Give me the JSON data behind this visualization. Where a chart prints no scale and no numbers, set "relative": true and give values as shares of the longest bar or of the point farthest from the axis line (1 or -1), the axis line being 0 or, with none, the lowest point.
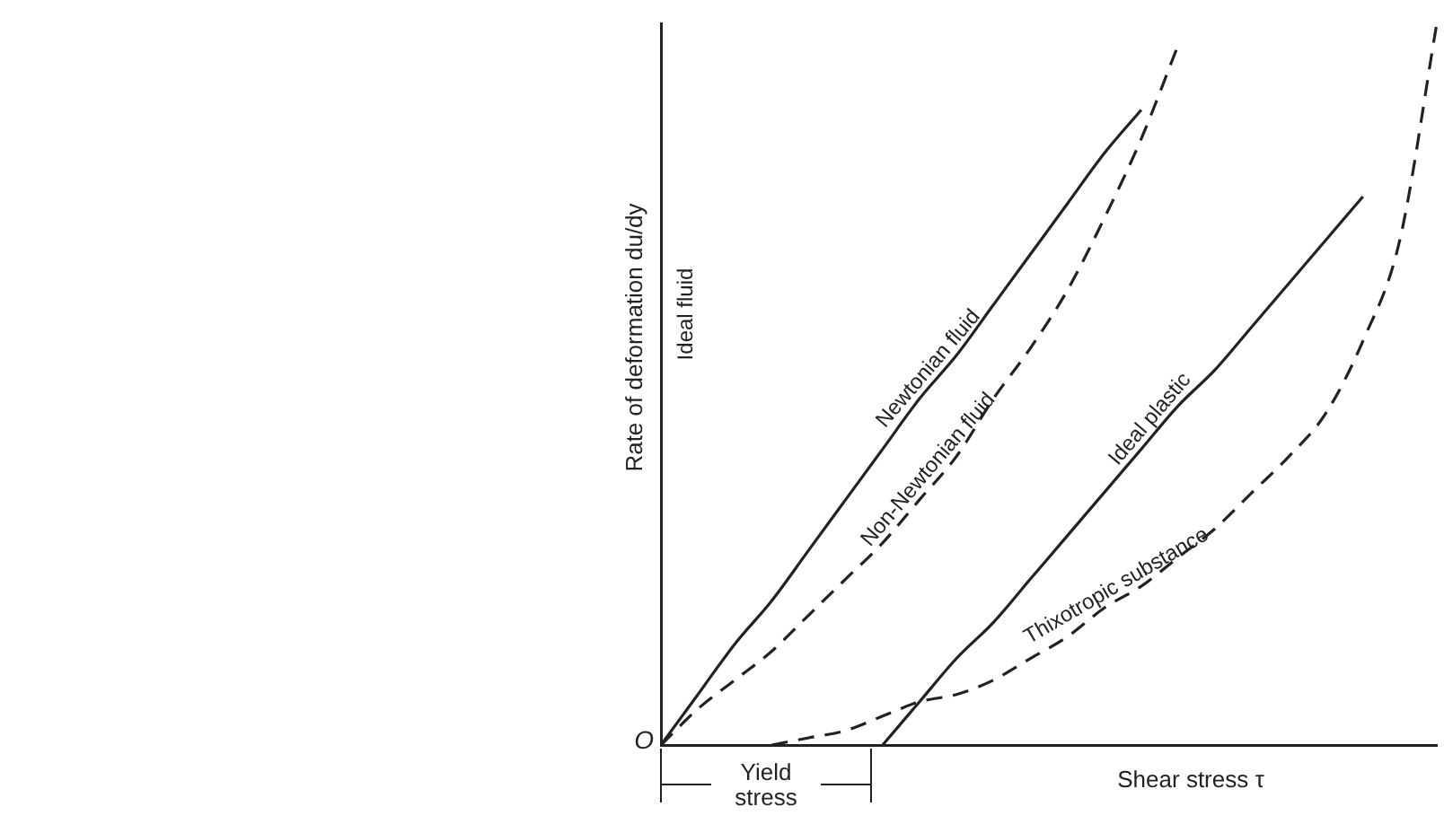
{
  "chart_data": {
    "type": "line",
    "relative": true,
    "xlabel": "Shear stress τ",
    "ylabel": "Rate of deformation du/dy",
    "categories": [
      null,
      null,
      null,
      null,
      null,
      null,
      null,
      null,
      null,
      null,
      null,
      null,
      null,
      null,
      null,
      null,
      null,
      null,
      null,
      null,
      null,
      null
    ],
    "series": [
      {
        "name": "Newtonian fluid",
        "color": "#222222",
        "line_style": "solid",
        "values": [
          0,
          0.07,
          0.14,
          0.2,
          0.27,
          0.34,
          0.41,
          0.48,
          0.54,
          0.61,
          0.68,
          0.75,
          0.82,
          0.88,
          null,
          null,
          null,
          null,
          null,
          null,
          null,
          null
        ]
      },
      {
        "name": "Non-Newtonian fluid",
        "color": "#222222",
        "line_style": "dashed",
        "values": [
          0,
          0.05,
          0.09,
          0.13,
          0.18,
          0.23,
          0.28,
          0.34,
          0.4,
          0.48,
          0.55,
          0.63,
          0.73,
          0.84,
          0.97,
          null,
          null,
          null,
          null,
          null,
          null,
          null
        ]
      },
      {
        "name": "Ideal plastic",
        "color": "#222222",
        "line_style": "solid",
        "values": [
          null,
          null,
          null,
          null,
          null,
          null,
          0,
          0.06,
          0.12,
          0.17,
          0.23,
          0.29,
          0.35,
          0.41,
          0.47,
          0.52,
          0.58,
          0.64,
          0.7,
          0.76,
          null,
          null
        ]
      },
      {
        "name": "Thixotropic substance",
        "color": "#222222",
        "line_style": "dashed",
        "values": [
          null,
          null,
          null,
          0,
          0.01,
          0.02,
          0.04,
          0.06,
          0.07,
          0.09,
          0.12,
          0.15,
          0.19,
          0.22,
          0.26,
          0.3,
          0.35,
          0.4,
          0.46,
          0.56,
          0.7,
          1
        ]
      }
    ],
    "annotations": [
      "O",
      "Ideal fluid",
      "Yield stress"
    ]
  }
}
